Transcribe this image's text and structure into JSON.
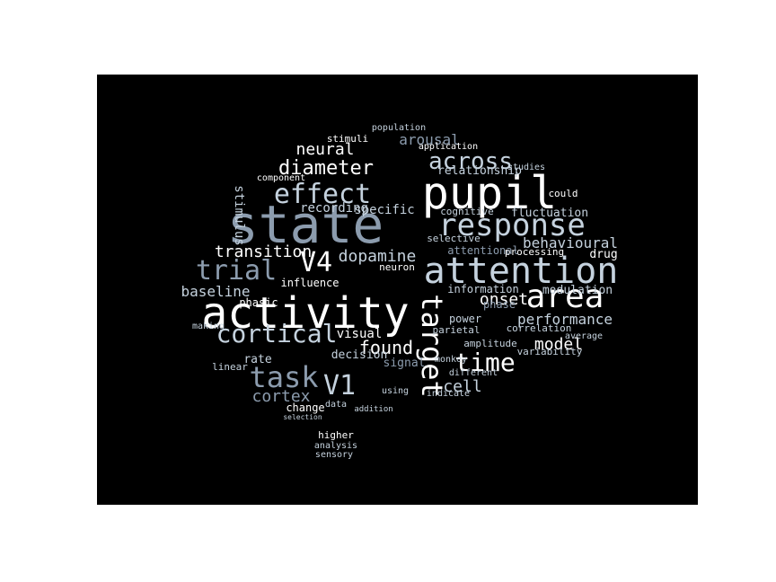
{
  "words": [
    "activity",
    "state",
    "pupil",
    "attention",
    "response",
    "area",
    "effect",
    "diameter",
    "across",
    "trial",
    "V4",
    "cortical",
    "task",
    "V1",
    "target",
    "time",
    "dopamine",
    "transition",
    "baseline",
    "found",
    "model",
    "performance",
    "onset",
    "cell",
    "cortex",
    "neural",
    "arousal",
    "behavioural",
    "stimulus",
    "recording",
    "specific",
    "influence",
    "modulation",
    "information",
    "visual",
    "decision",
    "signal",
    "change",
    "higher",
    "analysis",
    "sensory",
    "data",
    "power",
    "amplitude",
    "relationship",
    "fluctuation",
    "drug",
    "processing",
    "parietal",
    "rate",
    "phasic",
    "neuron",
    "correlation",
    "variability",
    "average",
    "monkey",
    "indicate",
    "different",
    "attentional",
    "selective",
    "cognitive",
    "studies",
    "could",
    "population",
    "application",
    "stimuli",
    "component",
    "making",
    "linear",
    "phase",
    "addition",
    "using",
    "selection"
  ]
}
